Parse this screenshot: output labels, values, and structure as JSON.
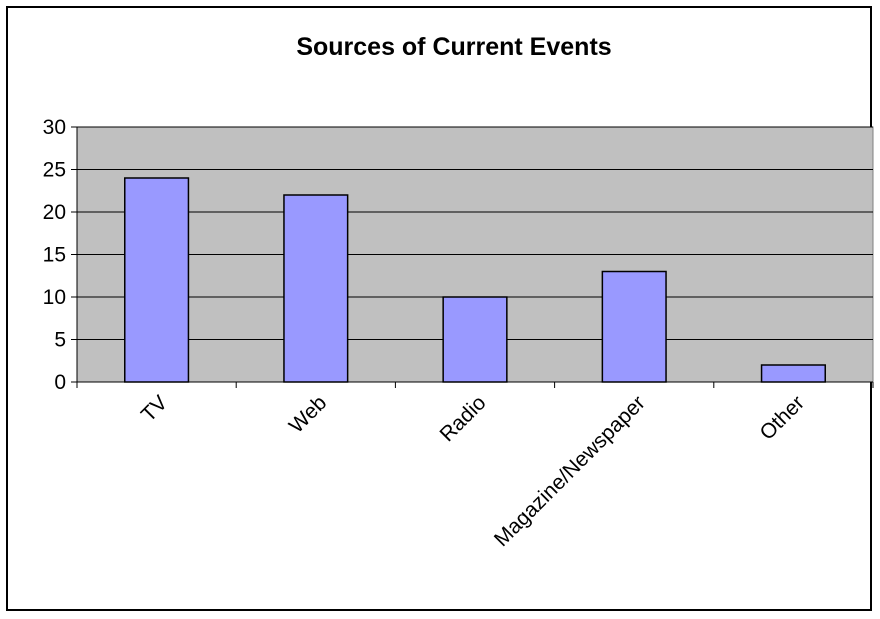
{
  "chart_data": {
    "type": "bar",
    "title": "Sources of Current Events",
    "xlabel": "",
    "ylabel": "",
    "categories": [
      "TV",
      "Web",
      "Radio",
      "Magazine/Newspaper",
      "Other"
    ],
    "values": [
      24,
      22,
      10,
      13,
      2
    ],
    "ylim": [
      0,
      30
    ],
    "yticks": [
      0,
      5,
      10,
      15,
      20,
      25,
      30
    ],
    "grid": true,
    "legend": "none",
    "colors": {
      "bar_fill": "#9999ff",
      "bar_stroke": "#000000",
      "plot_background": "#c0c0c0",
      "gridline": "#000000"
    }
  }
}
